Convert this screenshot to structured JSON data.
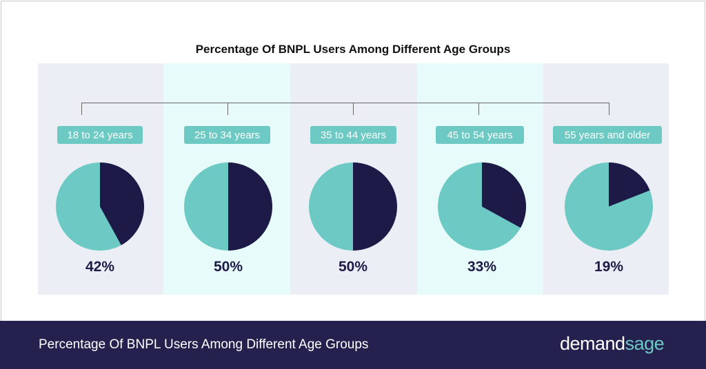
{
  "chart_data": {
    "type": "pie",
    "title": "Percentage Of BNPL Users Among Different Age Groups",
    "categories": [
      "18 to 24 years",
      "25 to 34 years",
      "35 to 44 years",
      "45 to 54 years",
      "55 years and older"
    ],
    "values": [
      42,
      50,
      50,
      33,
      19
    ],
    "value_labels": [
      "42%",
      "50%",
      "50%",
      "33%",
      "19%"
    ],
    "value_unit": "%",
    "colors": {
      "bnpl_slice": "#1e1a47",
      "remainder_slice": "#6cc9c3"
    }
  },
  "panels": {
    "colors": [
      "#eceef5",
      "#e8fbfb",
      "#eceef5",
      "#e8fbfb",
      "#eceef5"
    ]
  },
  "labels": {
    "pill_color": "#6cc9c3"
  },
  "footer": {
    "caption": "Percentage Of BNPL Users Among Different Age Groups",
    "background": "#25214f",
    "brand_left": "demand",
    "brand_right": "sage",
    "brand_accent": "#6cc9c3"
  }
}
